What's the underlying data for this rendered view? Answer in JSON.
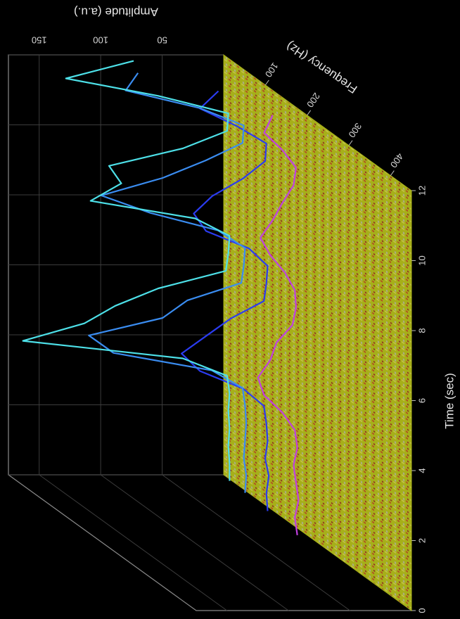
{
  "chart_data": {
    "type": "waterfall",
    "title_z": "Amplitude (a.u.)",
    "title_y": "Frequency (Hz)",
    "title_x": "Time (sec)",
    "xlim": [
      0,
      12
    ],
    "xticks": [
      0,
      2,
      4,
      6,
      8,
      10,
      12
    ],
    "ylim": [
      0,
      450
    ],
    "yticks": [
      100,
      200,
      300,
      400
    ],
    "zlim": [
      0,
      175
    ],
    "zticks": [
      50,
      100,
      150
    ],
    "surface_color": "#b8c21c",
    "x": [
      0,
      0.5,
      1,
      1.5,
      2,
      2.5,
      3,
      3.5,
      4,
      4.5,
      5,
      5.5,
      6,
      6.5,
      7,
      7.5,
      8,
      8.5,
      9,
      9.5,
      10,
      10.5,
      11,
      11.5,
      12
    ],
    "traces": [
      {
        "frequency": 200,
        "color": "#c040e0",
        "values": [
          8,
          10,
          7,
          9,
          11,
          8,
          10,
          20,
          35,
          40,
          30,
          25,
          12,
          9,
          10,
          18,
          30,
          38,
          28,
          20,
          11,
          9,
          20,
          35,
          28
        ]
      },
      {
        "frequency": 120,
        "color": "#2b3cf0",
        "values": [
          5,
          6,
          4,
          7,
          5,
          6,
          8,
          25,
          60,
          75,
          55,
          35,
          8,
          6,
          5,
          20,
          55,
          65,
          50,
          25,
          7,
          6,
          30,
          60,
          45
        ]
      },
      {
        "frequency": 60,
        "color": "#3a8cf0",
        "values": [
          3,
          2,
          4,
          3,
          2,
          3,
          5,
          30,
          110,
          130,
          70,
          50,
          6,
          4,
          3,
          25,
          80,
          120,
          70,
          35,
          5,
          4,
          40,
          100,
          90
        ]
      },
      {
        "frequency": 20,
        "color": "#4de0e8",
        "values": [
          2,
          2,
          3,
          2,
          3,
          2,
          4,
          40,
          170,
          120,
          95,
          60,
          5,
          3,
          2,
          30,
          115,
          90,
          100,
          40,
          4,
          3,
          60,
          135,
          80
        ]
      }
    ]
  }
}
